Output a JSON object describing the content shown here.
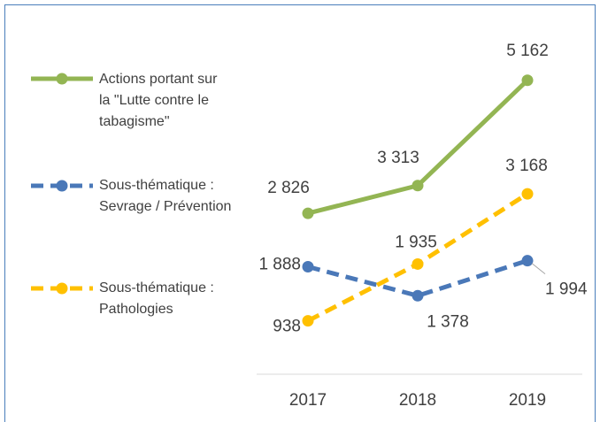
{
  "chart_data": {
    "type": "line",
    "categories": [
      "2017",
      "2018",
      "2019"
    ],
    "series": [
      {
        "name": "Actions portant sur la \"Lutte contre le tabagisme\"",
        "color": "#93b553",
        "dashed": false,
        "values": [
          2826,
          3313,
          5162
        ],
        "value_labels": [
          "2 826",
          "3 313",
          "5 162"
        ]
      },
      {
        "name": "Sous-thématique : Sevrage / Prévention",
        "color": "#4a78b8",
        "dashed": true,
        "values": [
          1888,
          1378,
          1994
        ],
        "value_labels": [
          "1 888",
          "1 378",
          "1 994"
        ]
      },
      {
        "name": "Sous-thématique : Pathologies",
        "color": "#ffc000",
        "dashed": true,
        "values": [
          938,
          1935,
          3168
        ],
        "value_labels": [
          "938",
          "1 935",
          "3 168"
        ]
      }
    ],
    "ylim": [
      0,
      5500
    ]
  }
}
